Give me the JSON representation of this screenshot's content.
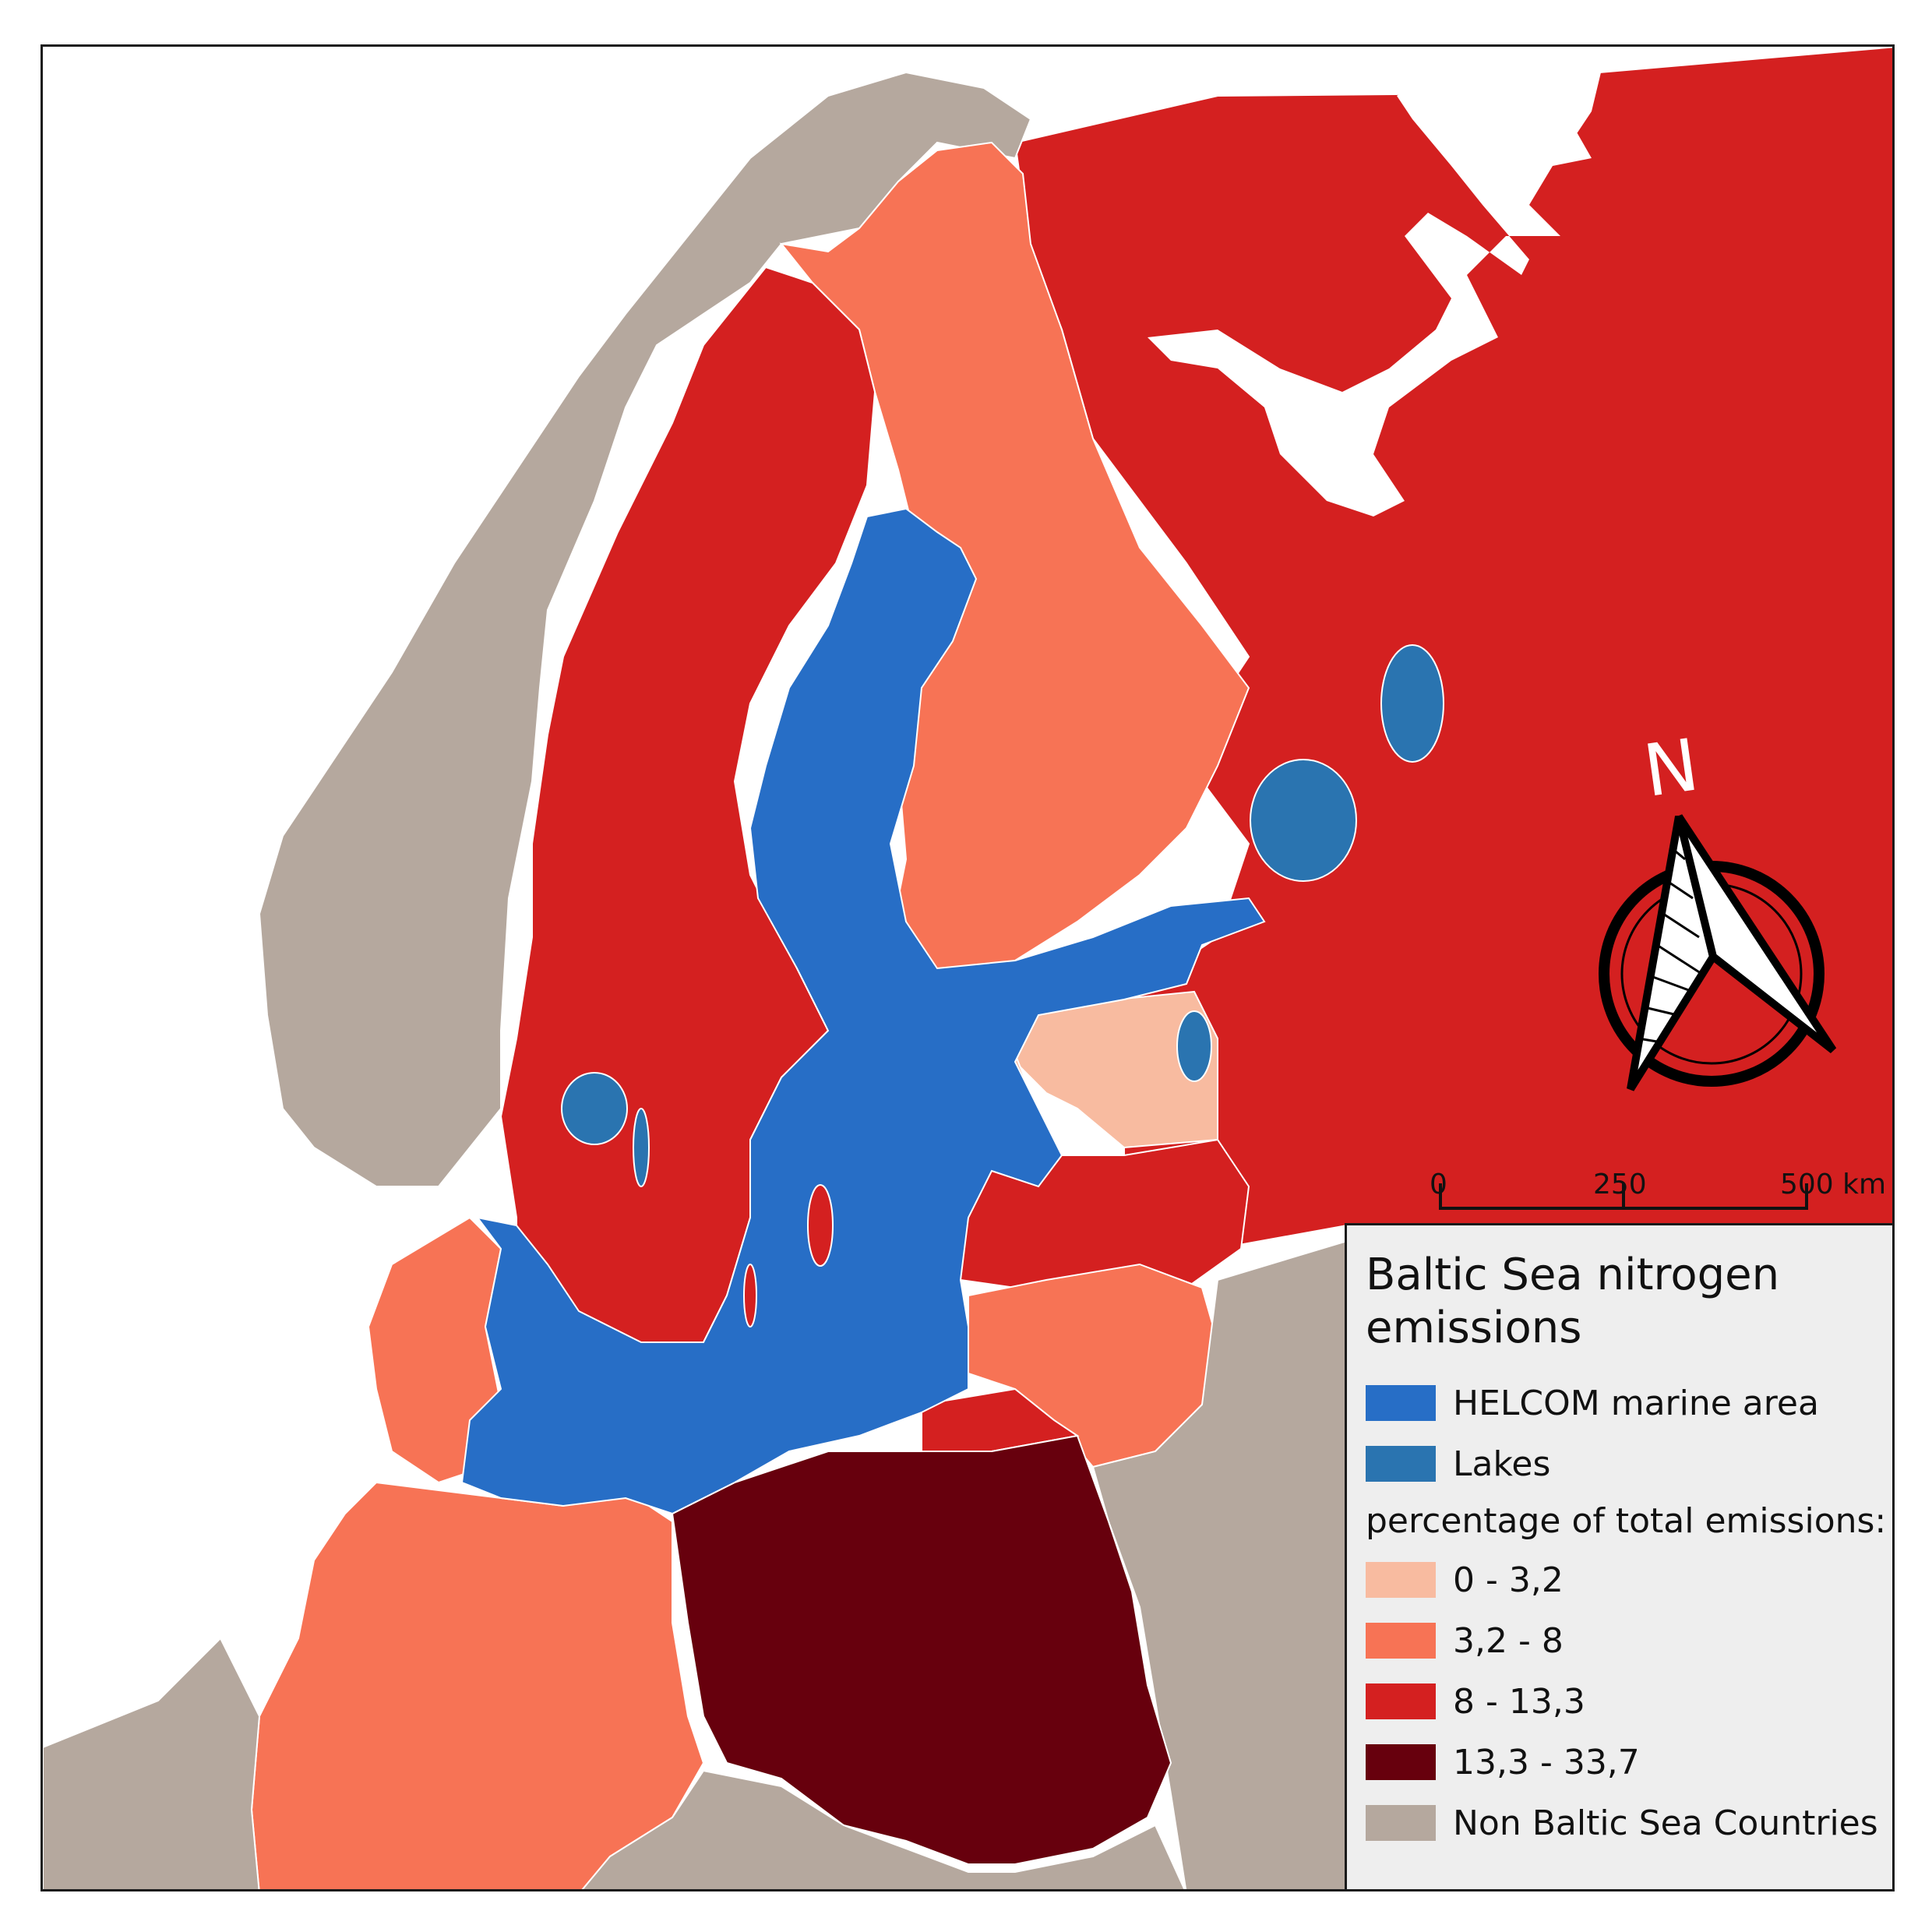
{
  "map": {
    "colors": {
      "water": "#ffffff",
      "non_baltic": "#b5a89e",
      "marine": "#276ec6",
      "lakes": "#2a74b0",
      "class_0_3_2": "#f8bba0",
      "class_3_2_8": "#f77355",
      "class_8_13_3": "#d42020",
      "class_13_3_33_7": "#67000d"
    }
  },
  "north_arrow": {
    "label": "N"
  },
  "scale_bar": {
    "labels": [
      "0",
      "250",
      "500 km"
    ]
  },
  "legend": {
    "title": "Baltic Sea nitrogen emissions",
    "items": [
      {
        "label": "HELCOM marine area",
        "color": "#276ec6"
      },
      {
        "label": "Lakes",
        "color": "#2a74b0"
      }
    ],
    "subtitle": "percentage of total emissions:",
    "classes": [
      {
        "label": "0 - 3,2",
        "color": "#f8bba0"
      },
      {
        "label": "3,2 - 8",
        "color": "#f77355"
      },
      {
        "label": "8 - 13,3",
        "color": "#d42020"
      },
      {
        "label": "13,3 - 33,7",
        "color": "#67000d"
      },
      {
        "label": "Non Baltic Sea Countries",
        "color": "#b5a89e"
      }
    ]
  }
}
